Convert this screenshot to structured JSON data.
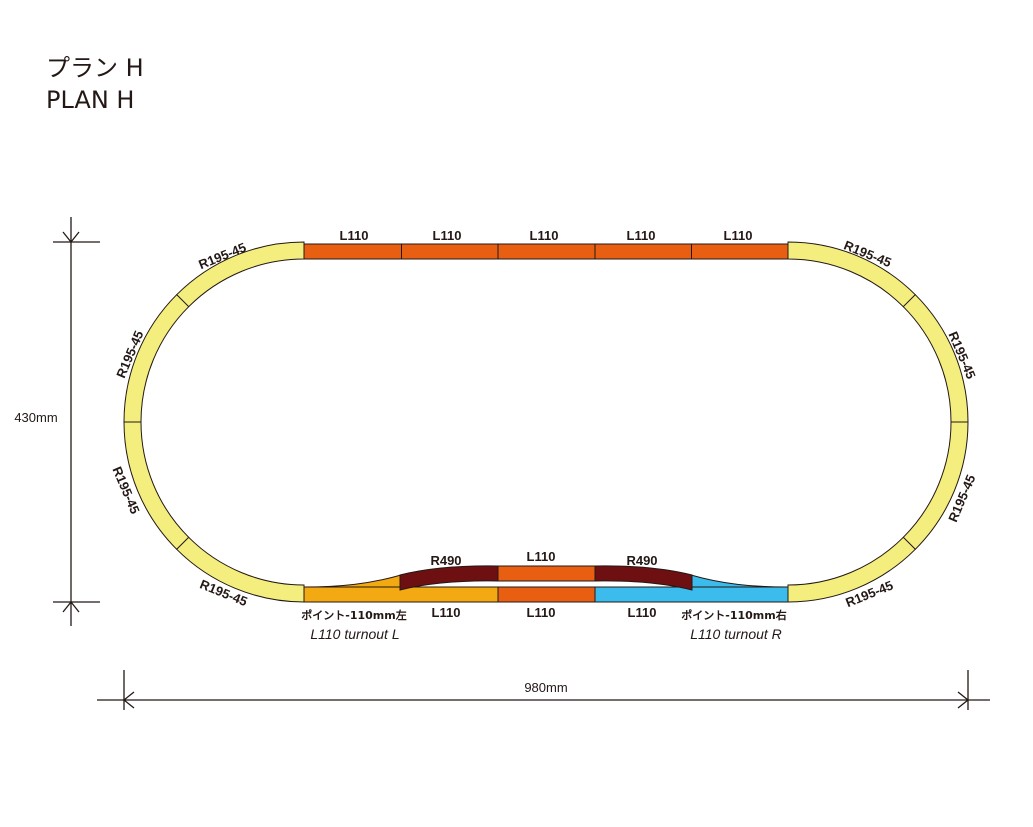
{
  "title": {
    "ja": "プラン H",
    "en": "PLAN  H"
  },
  "dimensions": {
    "height": "430mm",
    "width": "980mm"
  },
  "colors": {
    "curve": "#f3ee7d",
    "straight_top": "#e85f12",
    "r490": "#6e0f12",
    "turnout_left": "#f3aa12",
    "turnout_right": "#3bbcec",
    "outline": "#231815"
  },
  "top_straights": [
    "L110",
    "L110",
    "L110",
    "L110",
    "L110"
  ],
  "curves": {
    "left_top": "R195-45",
    "left_upper": "R195-45",
    "left_lower": "R195-45",
    "left_bottom": "R195-45",
    "right_top": "R195-45",
    "right_upper": "R195-45",
    "right_lower": "R195-45",
    "right_bottom": "R195-45"
  },
  "siding": {
    "r490_left": "R490",
    "center": "L110",
    "r490_right": "R490"
  },
  "bottom_straights": [
    "L110",
    "L110",
    "L110"
  ],
  "turnouts": {
    "left": {
      "ja": "ポイント-110mm左",
      "en": "L110 turnout L"
    },
    "right": {
      "ja": "ポイント-110mm右",
      "en": "L110 turnout R"
    }
  }
}
